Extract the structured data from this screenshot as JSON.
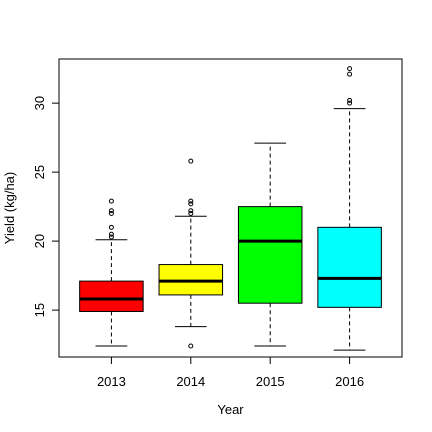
{
  "chart_data": {
    "type": "box",
    "title": "",
    "xlabel": "Year",
    "ylabel": "Yield (kg/ha)",
    "categories": [
      "2013",
      "2014",
      "2015",
      "2016"
    ],
    "y_ticks": [
      "15",
      "20",
      "25",
      "30"
    ],
    "ylim": [
      11.6,
      33.2
    ],
    "grid": false,
    "boxes": [
      {
        "category": "2013",
        "color": "#FF0000",
        "whisker_low": 12.4,
        "q1": 14.9,
        "median": 15.8,
        "q3": 17.1,
        "whisker_high": 20.1,
        "outliers": [
          20.3,
          20.5,
          21.0,
          22.0,
          22.2,
          22.9
        ]
      },
      {
        "category": "2014",
        "color": "#FFFF00",
        "whisker_low": 13.8,
        "q1": 16.1,
        "median": 17.1,
        "q3": 18.3,
        "whisker_high": 21.8,
        "outliers": [
          12.4,
          22.0,
          22.2,
          22.7,
          22.9,
          25.8
        ]
      },
      {
        "category": "2015",
        "color": "#00FF00",
        "whisker_low": 12.4,
        "q1": 15.5,
        "median": 20.0,
        "q3": 22.5,
        "whisker_high": 27.1,
        "outliers": []
      },
      {
        "category": "2016",
        "color": "#00FFFF",
        "whisker_low": 12.1,
        "q1": 15.2,
        "median": 17.3,
        "q3": 21.0,
        "whisker_high": 29.6,
        "outliers": [
          30.0,
          30.2,
          32.1,
          32.5
        ]
      }
    ]
  }
}
